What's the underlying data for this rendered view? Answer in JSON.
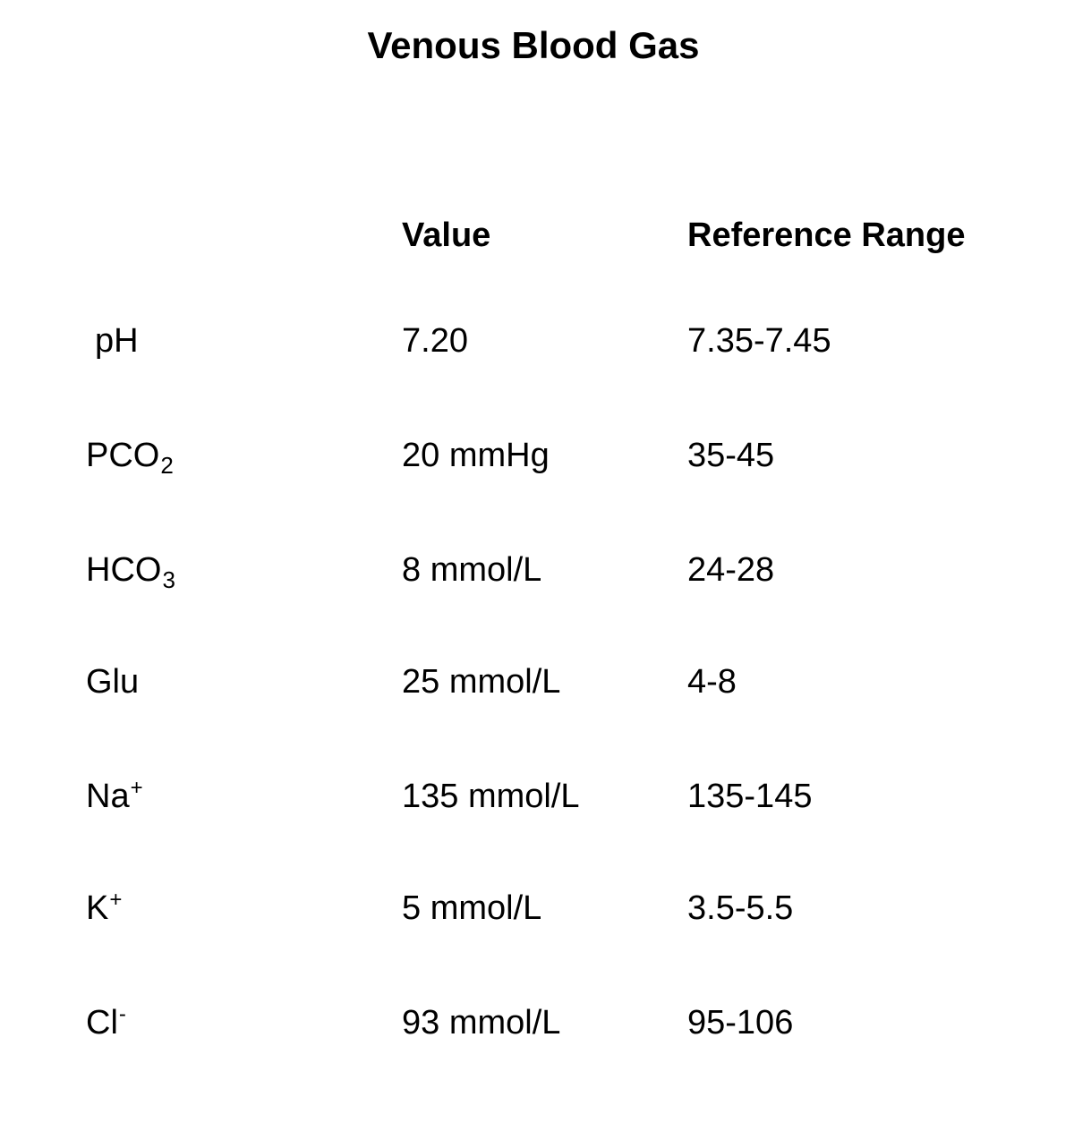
{
  "document": {
    "title": "Venous Blood Gas",
    "headers": {
      "value": "Value",
      "reference_range": "Reference Range"
    },
    "rows": [
      {
        "base": "pH",
        "sub": "",
        "sup": "",
        "value": "7.20",
        "range": "7.35-7.45"
      },
      {
        "base": "PCO",
        "sub": "2",
        "sup": "",
        "value": "20 mmHg",
        "range": "35-45"
      },
      {
        "base": "HCO",
        "sub": "3",
        "sup": "",
        "value": "8 mmol/L",
        "range": "24-28"
      },
      {
        "base": "Glu",
        "sub": "",
        "sup": "",
        "value": "25 mmol/L",
        "range": "4-8"
      },
      {
        "base": "Na",
        "sub": "",
        "sup": "+",
        "value": "135 mmol/L",
        "range": "135-145"
      },
      {
        "base": "K",
        "sub": "",
        "sup": "+",
        "value": "5 mmol/L",
        "range": "3.5-5.5"
      },
      {
        "base": "Cl",
        "sub": "",
        "sup": "-",
        "value": "93 mmol/L",
        "range": "95-106"
      }
    ]
  }
}
